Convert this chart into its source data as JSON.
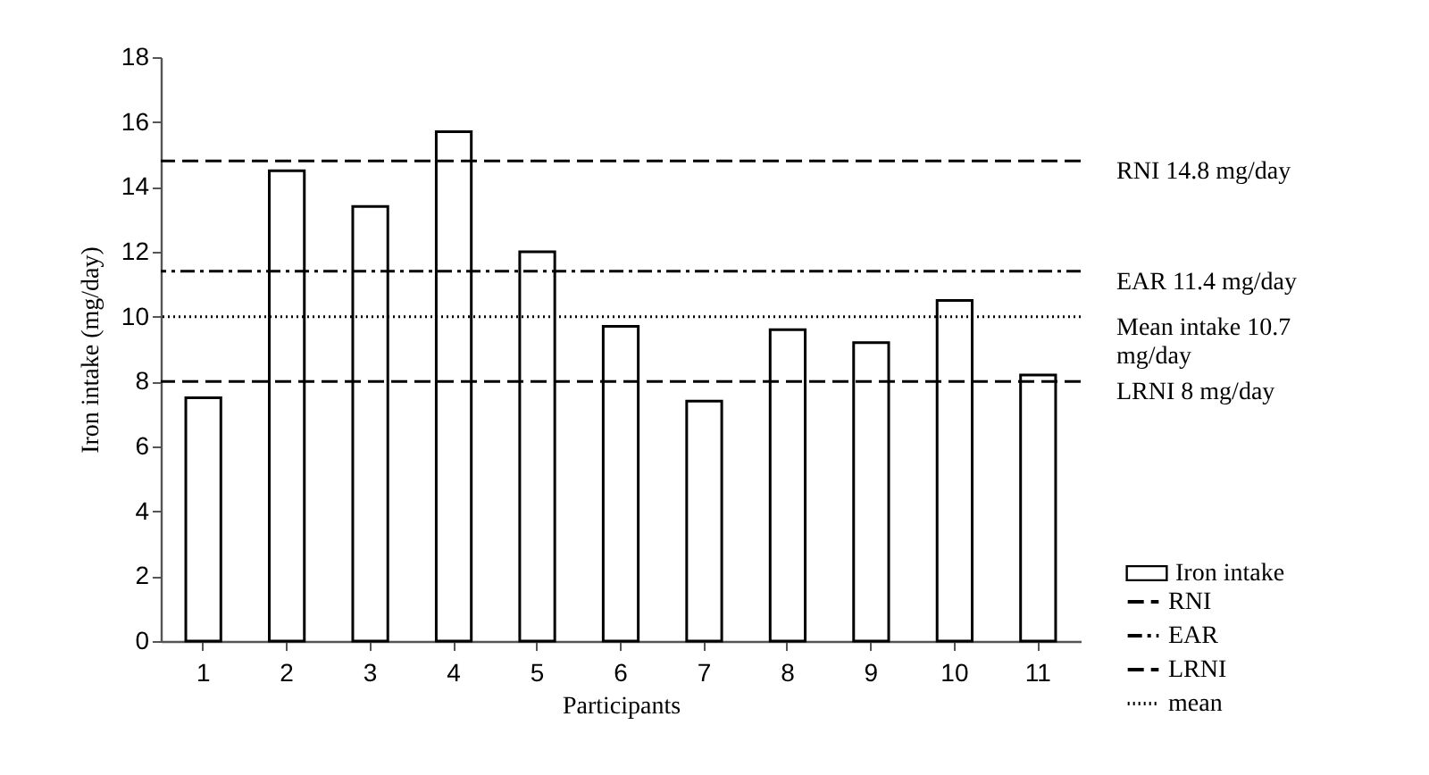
{
  "chart_data": {
    "type": "bar",
    "xlabel": "Participants",
    "ylabel": "Iron intake (mg/day)",
    "categories": [
      "1",
      "2",
      "3",
      "4",
      "5",
      "6",
      "7",
      "8",
      "9",
      "10",
      "11"
    ],
    "series": [
      {
        "name": "Iron intake",
        "color": "#ffffff",
        "values": [
          7.5,
          14.5,
          13.4,
          15.7,
          12.0,
          9.7,
          7.4,
          9.6,
          9.2,
          10.5,
          8.2
        ]
      }
    ],
    "ylim": [
      0,
      18
    ],
    "yticks": [
      0,
      2,
      4,
      6,
      8,
      10,
      12,
      14,
      16,
      18
    ],
    "ref_lines": [
      {
        "axis": "y",
        "value": 14.8,
        "label": "RNI",
        "line_style": "dashed",
        "color": "#000000"
      },
      {
        "axis": "y",
        "value": 11.4,
        "label": "EAR",
        "line_style": "dashdot",
        "color": "#000000"
      },
      {
        "axis": "y",
        "value": 8,
        "label": "LRNI",
        "line_style": "dashed",
        "color": "#000000"
      },
      {
        "axis": "y",
        "value": 10,
        "label": "mean",
        "line_style": "dotted",
        "color": "#000000"
      }
    ],
    "annotations": [
      "RNI 14.8 mg/day",
      "EAR 11.4 mg/day",
      "Mean intake 10.7 mg/day",
      "LRNI 8 mg/day"
    ],
    "grid": false,
    "legend": "bottom right"
  }
}
